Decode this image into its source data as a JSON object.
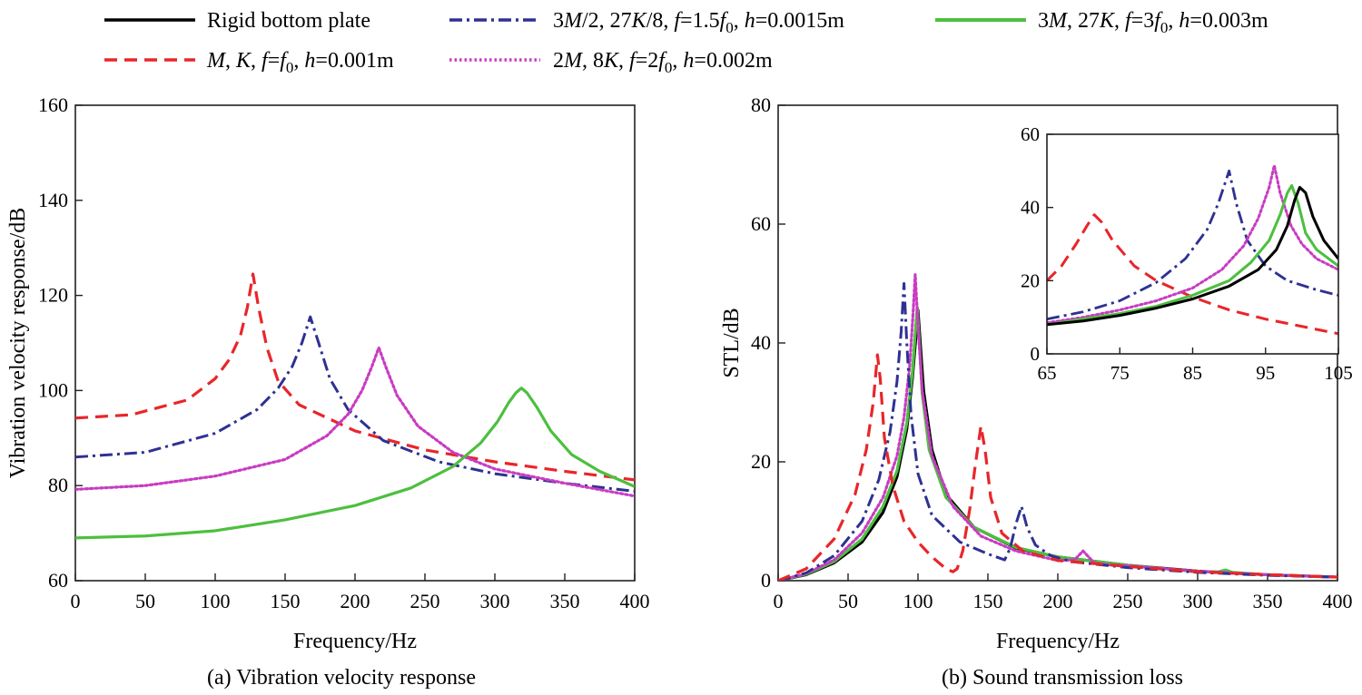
{
  "legend": [
    {
      "id": "rigid",
      "label": "Rigid bottom plate",
      "color": "#000000",
      "style": "solid"
    },
    {
      "id": "s15",
      "label": "3M/2, 27K/8, f=1.5f0, h=0.0015m",
      "color": "#2e3192",
      "style": "dashdot"
    },
    {
      "id": "s3",
      "label": "3M, 27K, f=3f0, h=0.003m",
      "color": "#4dbf3f",
      "style": "solid"
    },
    {
      "id": "s1",
      "label": "M, K, f=f0, h=0.001m",
      "color": "#e8262a",
      "style": "dashed"
    },
    {
      "id": "s2",
      "label": "2M, 8K, f=2f0, h=0.002m",
      "color": "#c83cc2",
      "style": "dotted"
    }
  ],
  "legend_rich": {
    "rigid": "Rigid bottom plate",
    "s15_a": "3",
    "s15_b": "M",
    "s15_c": "/2, 27",
    "s15_d": "K",
    "s15_e": "/8, ",
    "s15_f": "f",
    "s15_g": "=1.5",
    "s15_h": "f",
    "s15_i": "0",
    "s15_j": ", ",
    "s15_k": "h",
    "s15_l": "=0.0015m",
    "s3_a": "3",
    "s3_b": "M",
    "s3_c": ", 27",
    "s3_d": "K",
    "s3_e": ", ",
    "s3_f": "f",
    "s3_g": "=3",
    "s3_h": "f",
    "s3_i": "0",
    "s3_j": ", ",
    "s3_k": "h",
    "s3_l": "=0.003m",
    "s1_a": "M",
    "s1_b": ", ",
    "s1_c": "K",
    "s1_d": ", ",
    "s1_e": "f",
    "s1_f": "=",
    "s1_g": "f",
    "s1_h": "0",
    "s1_i": ", ",
    "s1_j": "h",
    "s1_k": "=0.001m",
    "s2_a": "2",
    "s2_b": "M",
    "s2_c": ", 8",
    "s2_d": "K",
    "s2_e": ", ",
    "s2_f": "f",
    "s2_g": "=2",
    "s2_h": "f",
    "s2_i": "0",
    "s2_j": ", ",
    "s2_k": "h",
    "s2_l": "=0.002m"
  },
  "chart_data": [
    {
      "type": "line",
      "id": "a",
      "title": "(a) Vibration velocity response",
      "xlabel": "Frequency/Hz",
      "ylabel": "Vibration velocity response/dB",
      "xlim": [
        0,
        400
      ],
      "ylim": [
        60,
        160
      ],
      "xticks": [
        0,
        50,
        100,
        150,
        200,
        250,
        300,
        350,
        400
      ],
      "yticks": [
        60,
        80,
        100,
        120,
        140,
        160
      ],
      "grid": false,
      "series": [
        {
          "name": "M, K, f=f0, h=0.001m",
          "key": "s1",
          "x": [
            0,
            40,
            80,
            100,
            110,
            118,
            123,
            127,
            131,
            137,
            145,
            160,
            200,
            250,
            300,
            350,
            400
          ],
          "y": [
            94.2,
            94.9,
            98.0,
            102.5,
            106.5,
            111.5,
            117.5,
            124.5,
            117.5,
            109.0,
            102.0,
            97.0,
            91.5,
            87.5,
            85.0,
            83.0,
            81.2
          ]
        },
        {
          "name": "3M/2, 27K/8, f=1.5f0, h=0.0015m",
          "key": "s15",
          "x": [
            0,
            50,
            100,
            130,
            145,
            155,
            162,
            168,
            174,
            182,
            195,
            220,
            260,
            300,
            350,
            400
          ],
          "y": [
            86.0,
            87.0,
            91.0,
            96.0,
            100.5,
            105.0,
            110.0,
            115.5,
            110.0,
            102.5,
            96.0,
            89.5,
            85.0,
            82.5,
            80.5,
            78.8
          ]
        },
        {
          "name": "2M, 8K, f=2f0, h=0.002m",
          "key": "s2",
          "x": [
            0,
            50,
            100,
            150,
            180,
            195,
            205,
            212,
            217,
            222,
            230,
            245,
            270,
            300,
            350,
            400
          ],
          "y": [
            79.2,
            80.0,
            82.0,
            85.5,
            90.5,
            95.0,
            100.0,
            105.0,
            109.0,
            105.0,
            99.0,
            92.5,
            87.0,
            83.5,
            80.5,
            77.8
          ]
        },
        {
          "name": "3M, 27K, f=3f0, h=0.003m",
          "key": "s3",
          "x": [
            0,
            50,
            100,
            150,
            200,
            240,
            270,
            290,
            302,
            310,
            315,
            319,
            323,
            330,
            340,
            355,
            375,
            400
          ],
          "y": [
            69.0,
            69.4,
            70.5,
            72.8,
            75.8,
            79.5,
            84.0,
            89.0,
            93.5,
            97.5,
            99.5,
            100.5,
            99.5,
            96.5,
            91.5,
            86.5,
            83.0,
            79.8
          ]
        }
      ]
    },
    {
      "type": "line",
      "id": "b",
      "title": "(b) Sound transmission loss",
      "xlabel": "Frequency/Hz",
      "ylabel": "STL/dB",
      "xlim": [
        0,
        400
      ],
      "ylim": [
        0,
        80
      ],
      "xticks": [
        0,
        50,
        100,
        150,
        200,
        250,
        300,
        350,
        400
      ],
      "yticks": [
        0,
        20,
        40,
        60,
        80
      ],
      "grid": false,
      "series": [
        {
          "name": "Rigid bottom plate",
          "key": "rigid",
          "x": [
            0,
            20,
            40,
            60,
            75,
            85,
            92,
            96,
            98.5,
            100,
            101.5,
            104,
            110,
            120,
            140,
            170,
            200,
            250,
            300,
            350,
            400
          ],
          "y": [
            0,
            1.0,
            3.0,
            6.5,
            11.5,
            17.5,
            25.5,
            34.0,
            41.0,
            45.5,
            40.5,
            32.0,
            22.0,
            14.5,
            9.0,
            5.5,
            4.0,
            2.6,
            1.6,
            1.0,
            0.6
          ]
        },
        {
          "name": "3M, 27K, f=3f0, h=0.003m",
          "key": "s3",
          "x": [
            0,
            20,
            40,
            60,
            75,
            85,
            92,
            96,
            98,
            99.5,
            101,
            103,
            108,
            120,
            140,
            170,
            200,
            250,
            300,
            315,
            320,
            325,
            350,
            400
          ],
          "y": [
            0,
            1.1,
            3.2,
            7.0,
            12.5,
            18.5,
            26.5,
            35.0,
            41.5,
            46.0,
            40.0,
            31.5,
            22.0,
            14.0,
            9.0,
            5.6,
            4.0,
            2.6,
            1.5,
            1.5,
            1.8,
            1.4,
            1.0,
            0.6
          ]
        },
        {
          "name": "2M, 8K, f=2f0, h=0.002m",
          "key": "s2",
          "x": [
            0,
            20,
            40,
            60,
            75,
            85,
            90,
            94,
            96.5,
            98,
            100,
            103,
            110,
            125,
            145,
            170,
            200,
            212,
            218,
            222,
            226,
            235,
            250,
            300,
            350,
            400
          ],
          "y": [
            0,
            1.2,
            3.5,
            8.0,
            14.0,
            21.0,
            27.5,
            36.0,
            45.0,
            51.5,
            43.0,
            32.0,
            21.0,
            12.5,
            7.5,
            5.0,
            3.4,
            3.5,
            5.0,
            4.0,
            3.0,
            2.7,
            2.5,
            1.6,
            1.0,
            0.6
          ]
        },
        {
          "name": "3M/2, 27K/8, f=1.5f0, h=0.0015m",
          "key": "s15",
          "x": [
            0,
            20,
            40,
            60,
            72,
            80,
            85,
            88,
            90,
            92,
            95,
            100,
            110,
            130,
            150,
            162,
            166,
            170,
            174,
            178,
            184,
            195,
            210,
            250,
            300,
            350,
            400
          ],
          "y": [
            0,
            1.3,
            4.2,
            10.0,
            17.0,
            25.0,
            33.5,
            42.0,
            50.0,
            40.0,
            28.0,
            18.0,
            11.0,
            6.5,
            4.5,
            3.5,
            5.5,
            9.5,
            12.5,
            9.0,
            6.0,
            4.2,
            3.2,
            2.2,
            1.4,
            0.9,
            0.6
          ]
        },
        {
          "name": "M, K, f=f0, h=0.001m",
          "key": "s1",
          "x": [
            0,
            20,
            40,
            55,
            63,
            68,
            71,
            73,
            76,
            82,
            90,
            100,
            110,
            120,
            125,
            128,
            132,
            137,
            141,
            145,
            148,
            152,
            160,
            175,
            200,
            250,
            300,
            350,
            400
          ],
          "y": [
            0,
            2.0,
            7.0,
            14.5,
            22.0,
            30.0,
            38.0,
            34.0,
            24.0,
            16.0,
            10.0,
            6.5,
            4.0,
            2.0,
            1.5,
            2.0,
            5.0,
            12.0,
            19.5,
            26.0,
            22.0,
            14.0,
            8.0,
            5.0,
            3.4,
            2.4,
            1.5,
            1.0,
            0.6
          ]
        }
      ],
      "inset": {
        "xlim": [
          65,
          105
        ],
        "ylim": [
          0,
          60
        ],
        "xticks": [
          65,
          75,
          85,
          95,
          105
        ],
        "yticks": [
          0,
          20,
          40,
          60
        ],
        "series": [
          {
            "key": "s1",
            "x": [
              65,
              67,
              69,
              70.5,
              71.5,
              72.5,
              74,
              77,
              80,
              85,
              90,
              95,
              100,
              105
            ],
            "y": [
              20.0,
              24.0,
              30.0,
              35.0,
              38.0,
              36.0,
              31.0,
              24.0,
              20.0,
              15.5,
              12.0,
              9.5,
              7.5,
              5.5
            ]
          },
          {
            "key": "s15",
            "x": [
              65,
              70,
              75,
              80,
              84,
              87,
              88.5,
              89.5,
              90,
              91,
              92.5,
              95,
              98,
              102,
              105
            ],
            "y": [
              9.5,
              11.5,
              14.5,
              19.5,
              26.0,
              34.0,
              41.0,
              47.0,
              50.0,
              41.0,
              31.0,
              24.0,
              20.0,
              17.5,
              16.0
            ]
          },
          {
            "key": "s2",
            "x": [
              65,
              70,
              75,
              80,
              85,
              89,
              92,
              94,
              95.5,
              96.2,
              97,
              98.5,
              100,
              102,
              105
            ],
            "y": [
              8.5,
              10.0,
              12.0,
              14.5,
              18.0,
              23.0,
              29.5,
              37.0,
              45.5,
              51.5,
              44.0,
              35.0,
              30.0,
              26.0,
              23.0
            ]
          },
          {
            "key": "s3",
            "x": [
              65,
              70,
              75,
              80,
              85,
              90,
              93,
              95.5,
              97,
              98,
              98.6,
              99.5,
              100.5,
              102,
              105
            ],
            "y": [
              8.0,
              9.5,
              11.0,
              13.0,
              16.0,
              20.0,
              25.0,
              31.0,
              38.0,
              44.0,
              46.0,
              41.0,
              33.0,
              28.5,
              24.0
            ]
          },
          {
            "key": "rigid",
            "x": [
              65,
              70,
              75,
              80,
              85,
              90,
              94,
              96.5,
              98,
              99,
              99.7,
              100.5,
              101.5,
              103,
              105
            ],
            "y": [
              8.0,
              9.0,
              10.5,
              12.5,
              15.0,
              18.5,
              23.0,
              28.5,
              35.0,
              42.0,
              45.5,
              44.0,
              37.5,
              31.0,
              26.0
            ]
          }
        ]
      }
    }
  ]
}
